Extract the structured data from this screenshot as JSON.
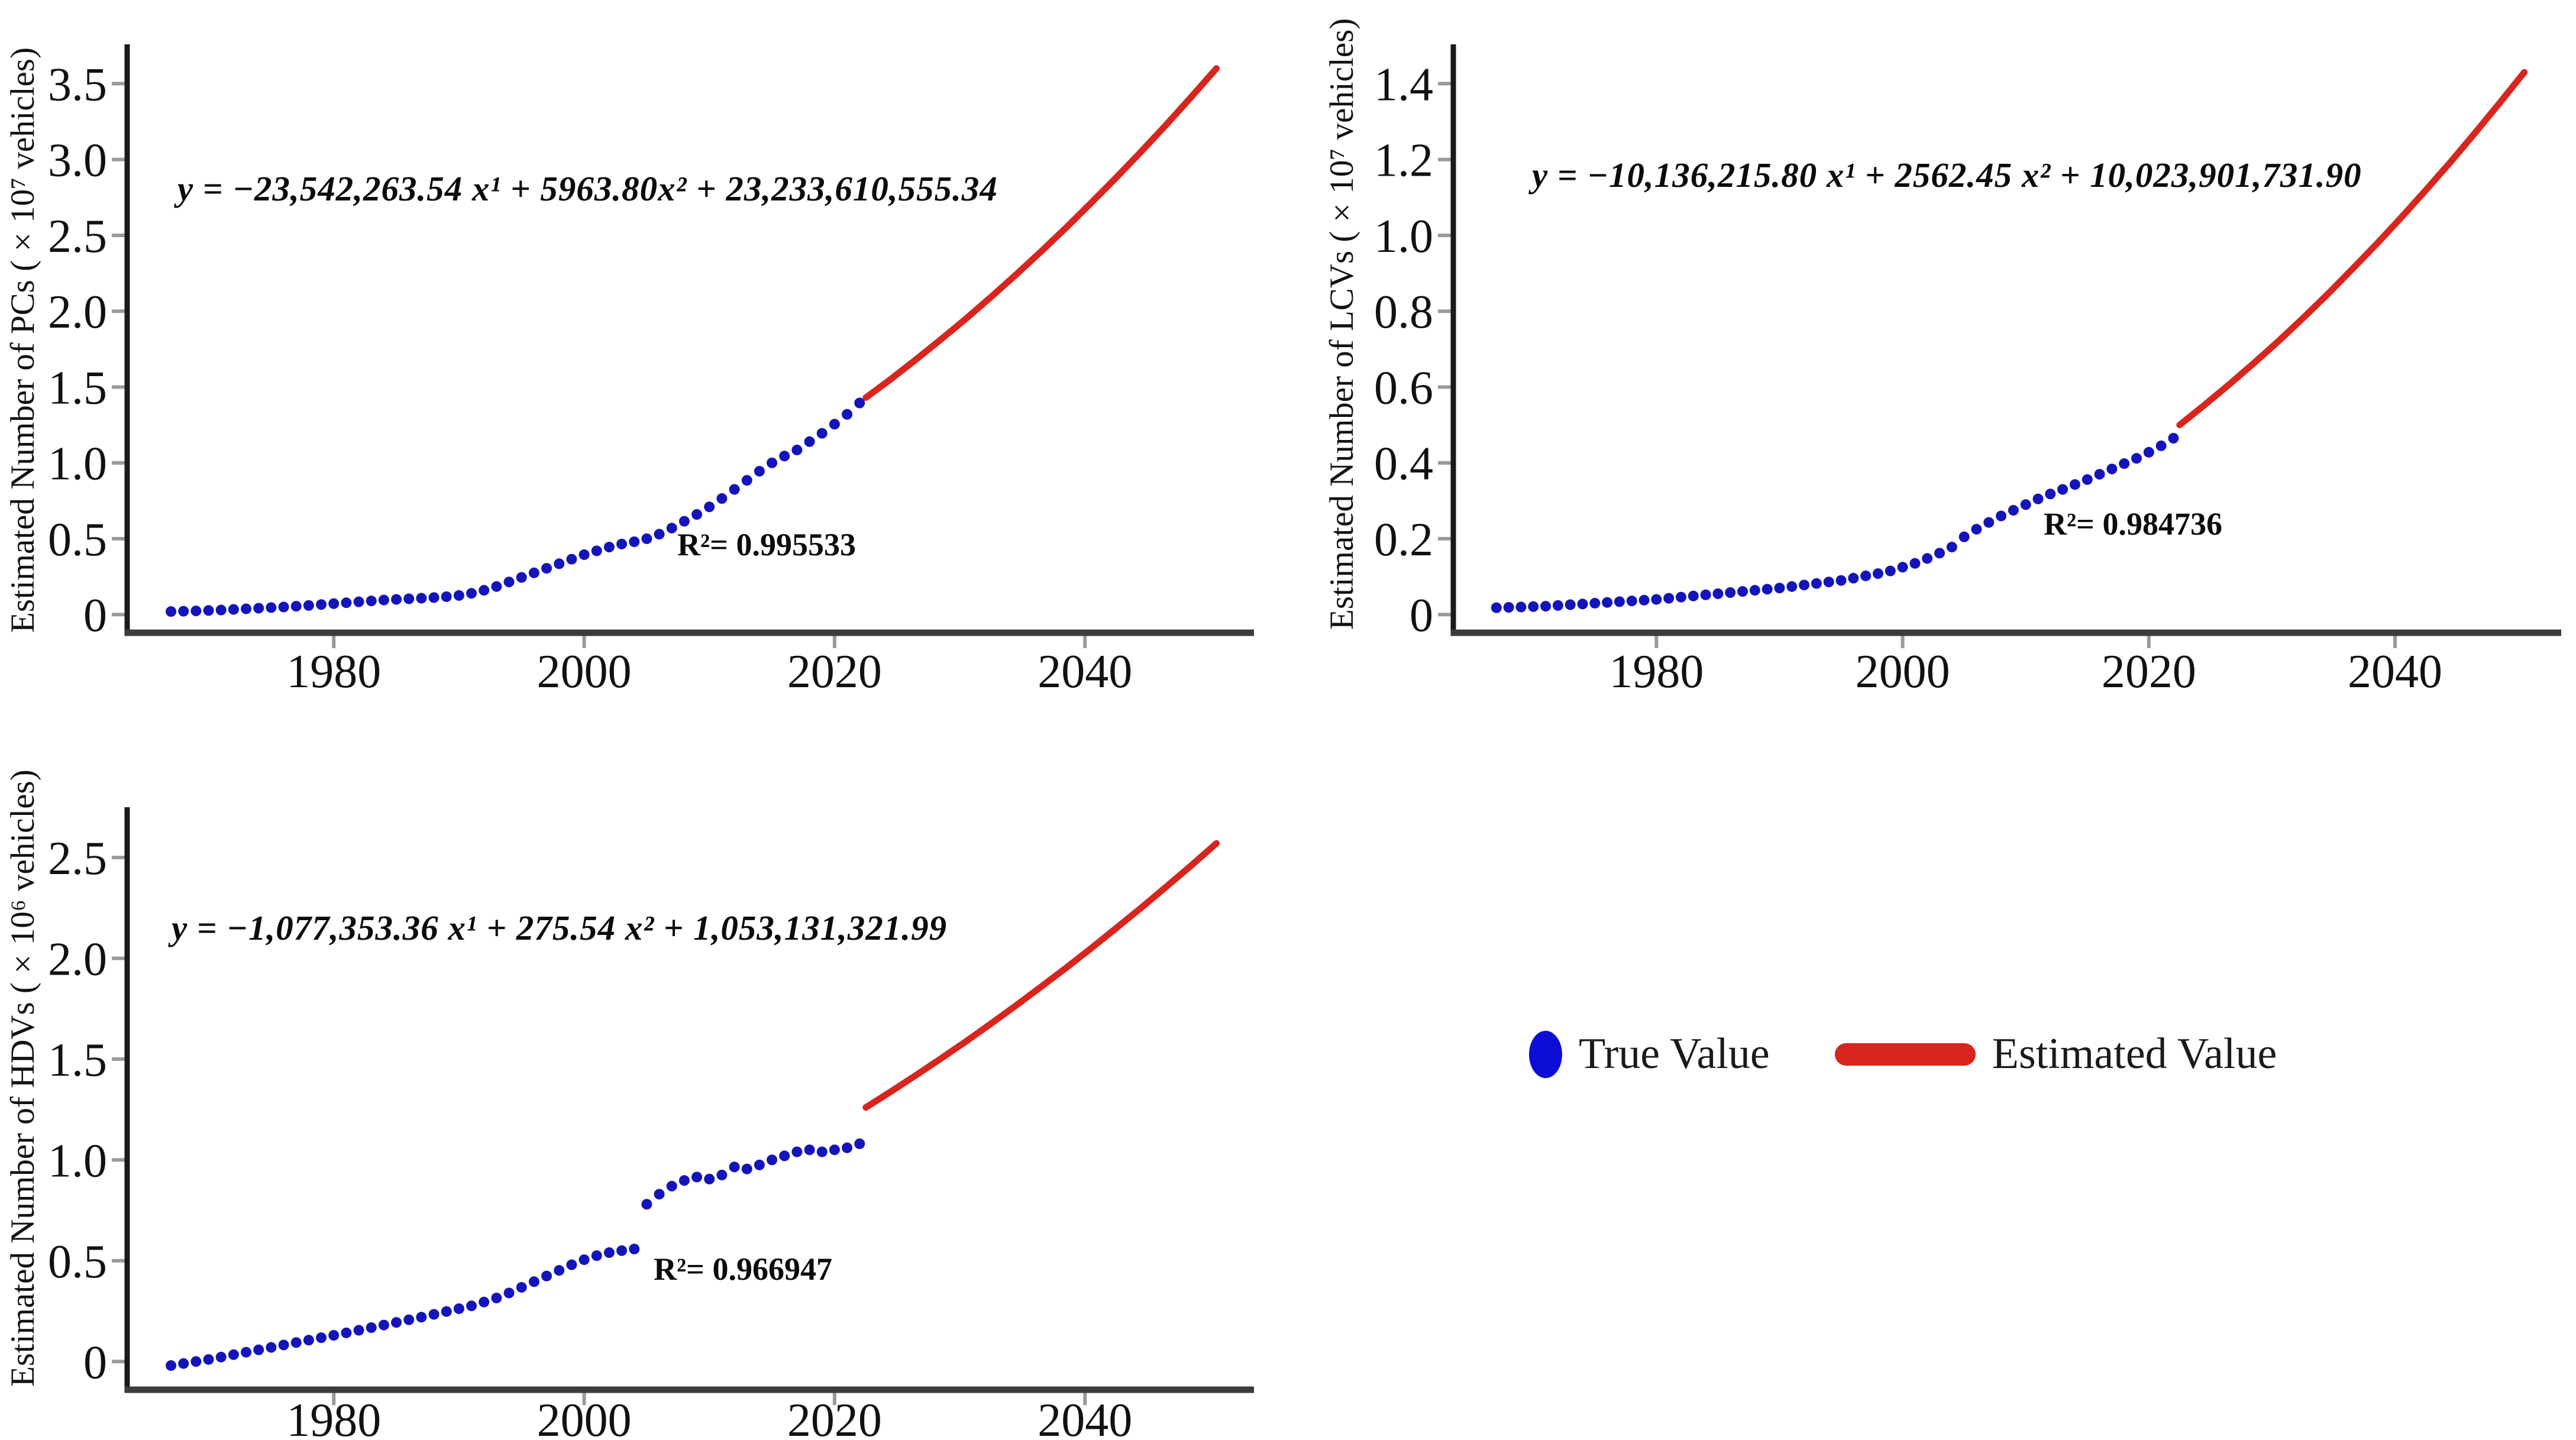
{
  "page": {
    "background": "#ffffff"
  },
  "colors": {
    "true_value": "#1414bb",
    "legend_true_value": "#0d0dd6",
    "estimated_value": "#d8251d",
    "axis_y": "#1a1a1a",
    "axis_x": "#3c3c3c",
    "tick": "#9a9a9a",
    "text": "#111111"
  },
  "legend": {
    "true_label": "True Value",
    "estimated_label": "Estimated Value"
  },
  "chart_data": [
    {
      "id": "pcs",
      "type": "scatter",
      "title": "",
      "ylabel": "Estimated Number of PCs (×10⁷ vehicles)",
      "xlabel": "",
      "equation": "y = −23,542,263.54 x¹ + 5963.80x² + 23,233,610,555.34",
      "r_squared_label": "R²= 0.995533",
      "xlim": [
        1963.5,
        2053.5
      ],
      "ylim": [
        -0.12,
        3.72
      ],
      "xticks": [
        1980,
        2000,
        2020,
        2040
      ],
      "xtick_labels": [
        "1980",
        "2000",
        "2020",
        "2040"
      ],
      "yticks": [
        0,
        0.5,
        1.0,
        1.5,
        2.0,
        2.5,
        3.0,
        3.5
      ],
      "ytick_labels": [
        "0",
        "0.5",
        "1.0",
        "1.5",
        "2.0",
        "2.5",
        "3.0",
        "3.5"
      ],
      "grid": false,
      "series": [
        {
          "name": "True Value",
          "kind": "dots",
          "years": [
            1967,
            1968,
            1969,
            1970,
            1971,
            1972,
            1973,
            1974,
            1975,
            1976,
            1977,
            1978,
            1979,
            1980,
            1981,
            1982,
            1983,
            1984,
            1985,
            1986,
            1987,
            1988,
            1989,
            1990,
            1991,
            1992,
            1993,
            1994,
            1995,
            1996,
            1997,
            1998,
            1999,
            2000,
            2001,
            2002,
            2003,
            2004,
            2005,
            2006,
            2007,
            2008,
            2009,
            2010,
            2011,
            2012,
            2013,
            2014,
            2015,
            2016,
            2017,
            2018,
            2019,
            2020,
            2021,
            2022
          ],
          "values": [
            0.02,
            0.022,
            0.024,
            0.027,
            0.03,
            0.034,
            0.038,
            0.042,
            0.046,
            0.05,
            0.055,
            0.06,
            0.066,
            0.072,
            0.078,
            0.084,
            0.09,
            0.096,
            0.1,
            0.104,
            0.108,
            0.112,
            0.118,
            0.126,
            0.14,
            0.16,
            0.185,
            0.215,
            0.245,
            0.275,
            0.305,
            0.335,
            0.365,
            0.395,
            0.42,
            0.445,
            0.465,
            0.48,
            0.5,
            0.53,
            0.57,
            0.615,
            0.66,
            0.71,
            0.765,
            0.825,
            0.885,
            0.945,
            1.0,
            1.045,
            1.085,
            1.14,
            1.195,
            1.255,
            1.32,
            1.395
          ]
        },
        {
          "name": "Estimated Value",
          "kind": "line",
          "years": [
            2022.5,
            2024.5,
            2026.5,
            2028.5,
            2030.5,
            2032.5,
            2034.5,
            2036.5,
            2038.5,
            2040.5,
            2042.5,
            2044.5,
            2046.5,
            2048.5,
            2050.5
          ],
          "values": [
            1.43,
            1.553,
            1.681,
            1.814,
            1.951,
            2.094,
            2.241,
            2.394,
            2.551,
            2.714,
            2.881,
            3.053,
            3.23,
            3.413,
            3.6
          ]
        }
      ]
    },
    {
      "id": "lcvs",
      "type": "scatter",
      "title": "",
      "ylabel": "Estimated Number of LCVs (×10⁷ vehicles)",
      "xlabel": "",
      "equation": "y = −10,136,215.80 x¹ + 2562.45 x² + 10,023,901,731.90",
      "r_squared_label": "R²= 0.984736",
      "xlim": [
        1963.5,
        2053.5
      ],
      "ylim": [
        -0.048,
        1.488
      ],
      "xticks": [
        1980,
        2000,
        2020,
        2040
      ],
      "xtick_labels": [
        "1980",
        "2000",
        "2020",
        "2040"
      ],
      "yticks": [
        0,
        0.2,
        0.4,
        0.6,
        0.8,
        1.0,
        1.2,
        1.4
      ],
      "ytick_labels": [
        "0",
        "0.2",
        "0.4",
        "0.6",
        "0.8",
        "1.0",
        "1.2",
        "1.4"
      ],
      "grid": false,
      "series": [
        {
          "name": "True Value",
          "kind": "dots",
          "years": [
            1967,
            1968,
            1969,
            1970,
            1971,
            1972,
            1973,
            1974,
            1975,
            1976,
            1977,
            1978,
            1979,
            1980,
            1981,
            1982,
            1983,
            1984,
            1985,
            1986,
            1987,
            1988,
            1989,
            1990,
            1991,
            1992,
            1993,
            1994,
            1995,
            1996,
            1997,
            1998,
            1999,
            2000,
            2001,
            2002,
            2003,
            2004,
            2005,
            2006,
            2007,
            2008,
            2009,
            2010,
            2011,
            2012,
            2013,
            2014,
            2015,
            2016,
            2017,
            2018,
            2019,
            2020,
            2021,
            2022
          ],
          "values": [
            0.018,
            0.019,
            0.02,
            0.021,
            0.022,
            0.024,
            0.026,
            0.028,
            0.03,
            0.032,
            0.034,
            0.036,
            0.038,
            0.04,
            0.043,
            0.046,
            0.049,
            0.052,
            0.055,
            0.058,
            0.061,
            0.064,
            0.067,
            0.07,
            0.074,
            0.078,
            0.082,
            0.086,
            0.09,
            0.096,
            0.102,
            0.108,
            0.115,
            0.125,
            0.135,
            0.148,
            0.162,
            0.178,
            0.205,
            0.225,
            0.243,
            0.26,
            0.275,
            0.29,
            0.305,
            0.318,
            0.33,
            0.343,
            0.356,
            0.37,
            0.384,
            0.398,
            0.412,
            0.428,
            0.445,
            0.465
          ]
        },
        {
          "name": "Estimated Value",
          "kind": "line",
          "years": [
            2022.5,
            2024.5,
            2026.5,
            2028.5,
            2030.5,
            2032.5,
            2034.5,
            2036.5,
            2038.5,
            2040.5,
            2042.5,
            2044.5,
            2046.5,
            2048.5,
            2050.5
          ],
          "values": [
            0.5,
            0.552,
            0.606,
            0.662,
            0.72,
            0.781,
            0.844,
            0.91,
            0.977,
            1.047,
            1.119,
            1.193,
            1.27,
            1.349,
            1.43
          ]
        }
      ]
    },
    {
      "id": "hdvs",
      "type": "scatter",
      "title": "",
      "ylabel": "Estimated Number of HDVs (×10⁶ vehicles)",
      "xlabel": "",
      "equation": "y = −1,077,353.36 x¹ + 275.54 x² + 1,053,131,321.99",
      "r_squared_label": "R²= 0.966947",
      "xlim": [
        1963.5,
        2053.5
      ],
      "ylim": [
        -0.14,
        2.72
      ],
      "xticks": [
        1980,
        2000,
        2020,
        2040
      ],
      "xtick_labels": [
        "1980",
        "2000",
        "2020",
        "2040"
      ],
      "yticks": [
        0,
        0.5,
        1.0,
        1.5,
        2.0,
        2.5
      ],
      "ytick_labels": [
        "0",
        "0.5",
        "1.0",
        "1.5",
        "2.0",
        "2.5"
      ],
      "grid": false,
      "series": [
        {
          "name": "True Value",
          "kind": "dots",
          "years": [
            1967,
            1968,
            1969,
            1970,
            1971,
            1972,
            1973,
            1974,
            1975,
            1976,
            1977,
            1978,
            1979,
            1980,
            1981,
            1982,
            1983,
            1984,
            1985,
            1986,
            1987,
            1988,
            1989,
            1990,
            1991,
            1992,
            1993,
            1994,
            1995,
            1996,
            1997,
            1998,
            1999,
            2000,
            2001,
            2002,
            2003,
            2004,
            2005,
            2006,
            2007,
            2008,
            2009,
            2010,
            2011,
            2012,
            2013,
            2014,
            2015,
            2016,
            2017,
            2018,
            2019,
            2020,
            2021,
            2022
          ],
          "values": [
            -0.02,
            -0.01,
            0.0,
            0.01,
            0.022,
            0.034,
            0.046,
            0.058,
            0.07,
            0.082,
            0.094,
            0.106,
            0.118,
            0.13,
            0.142,
            0.155,
            0.168,
            0.181,
            0.194,
            0.207,
            0.22,
            0.234,
            0.248,
            0.262,
            0.276,
            0.295,
            0.315,
            0.34,
            0.368,
            0.396,
            0.424,
            0.452,
            0.48,
            0.505,
            0.525,
            0.54,
            0.55,
            0.558,
            0.78,
            0.83,
            0.87,
            0.898,
            0.915,
            0.905,
            0.925,
            0.965,
            0.955,
            0.975,
            1.0,
            1.02,
            1.04,
            1.05,
            1.04,
            1.05,
            1.06,
            1.08
          ]
        },
        {
          "name": "Estimated Value",
          "kind": "line",
          "years": [
            2022.5,
            2024.5,
            2026.5,
            2028.5,
            2030.5,
            2032.5,
            2034.5,
            2036.5,
            2038.5,
            2040.5,
            2042.5,
            2044.5,
            2046.5,
            2048.5,
            2050.5
          ],
          "values": [
            1.26,
            1.339,
            1.42,
            1.503,
            1.588,
            1.676,
            1.766,
            1.859,
            1.953,
            2.05,
            2.15,
            2.251,
            2.355,
            2.461,
            2.57
          ]
        }
      ]
    }
  ]
}
